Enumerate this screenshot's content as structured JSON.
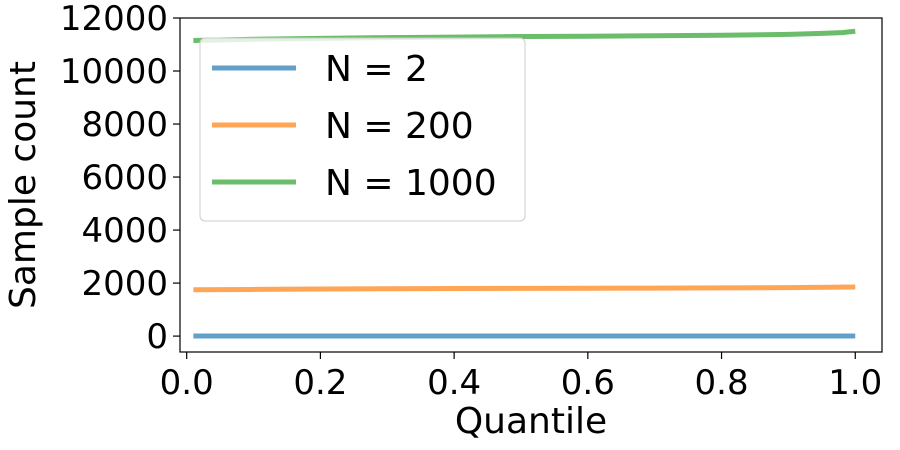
{
  "chart_data": {
    "type": "line",
    "xlabel": "Quantile",
    "ylabel": "Sample count",
    "xlim": [
      -0.01,
      1.04
    ],
    "ylim": [
      -600,
      12000
    ],
    "xticks": [
      0.0,
      0.2,
      0.4,
      0.6,
      0.8,
      1.0
    ],
    "xtick_labels": [
      "0.0",
      "0.2",
      "0.4",
      "0.6",
      "0.8",
      "1.0"
    ],
    "yticks": [
      0,
      2000,
      4000,
      6000,
      8000,
      10000,
      12000
    ],
    "ytick_labels": [
      "0",
      "2000",
      "4000",
      "6000",
      "8000",
      "10000",
      "12000"
    ],
    "grid": false,
    "legend_position": "upper-left",
    "series": [
      {
        "name": "N = 2",
        "color": "#1f77b4",
        "x": [
          0.01,
          0.2,
          0.4,
          0.6,
          0.8,
          0.9,
          1.0
        ],
        "y": [
          2,
          2,
          2,
          2,
          2,
          2,
          2
        ]
      },
      {
        "name": "N = 200",
        "color": "#ff7f0e",
        "x": [
          0.01,
          0.1,
          0.2,
          0.3,
          0.4,
          0.5,
          0.6,
          0.7,
          0.8,
          0.9,
          1.0
        ],
        "y": [
          1750,
          1760,
          1775,
          1785,
          1795,
          1800,
          1805,
          1810,
          1820,
          1830,
          1850
        ]
      },
      {
        "name": "N = 1000",
        "color": "#2ca02c",
        "x": [
          0.01,
          0.1,
          0.2,
          0.3,
          0.4,
          0.5,
          0.6,
          0.7,
          0.8,
          0.9,
          0.95,
          0.98,
          1.0
        ],
        "y": [
          11150,
          11200,
          11230,
          11260,
          11280,
          11300,
          11310,
          11330,
          11350,
          11380,
          11420,
          11450,
          11500
        ]
      }
    ]
  }
}
